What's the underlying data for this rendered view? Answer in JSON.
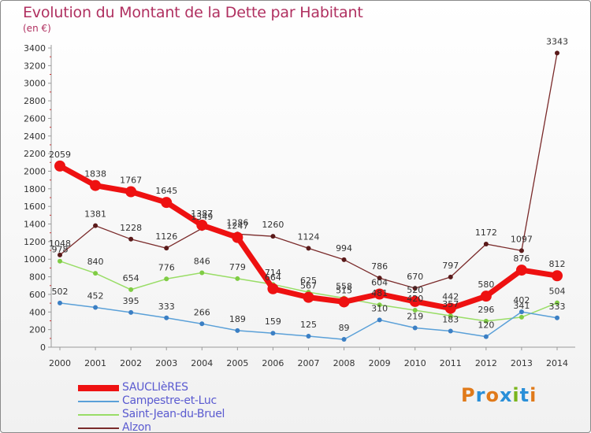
{
  "chart_data": {
    "type": "line",
    "title": "Evolution du Montant de la Dette par Habitant",
    "subtitle": "(en €)",
    "categories": [
      "2000",
      "2001",
      "2002",
      "2003",
      "2004",
      "2005",
      "2006",
      "2007",
      "2008",
      "2009",
      "2010",
      "2011",
      "2012",
      "2013",
      "2014"
    ],
    "ylim": [
      0,
      3400
    ],
    "yticks": [
      0,
      200,
      400,
      600,
      800,
      1000,
      1200,
      1400,
      1600,
      1800,
      2000,
      2200,
      2400,
      2600,
      2800,
      3000,
      3200,
      3400
    ],
    "grid": false,
    "legend_position": "bottom-left",
    "series": [
      {
        "name": "SAUCLIèRES",
        "color": "#ee1111",
        "width": 7,
        "marker": 7,
        "values": [
          2059,
          1838,
          1767,
          1645,
          1387,
          1247,
          664,
          567,
          515,
          604,
          520,
          442,
          580,
          876,
          812
        ],
        "labels": [
          "2059",
          "1838",
          "1767",
          "1645",
          "1387",
          "1247",
          "664",
          "567",
          "515",
          "604",
          "520",
          "442",
          "580",
          "876",
          "812"
        ]
      },
      {
        "name": "Campestre-et-Luc",
        "color": "#5aa0d8",
        "width": 1.5,
        "marker": 3,
        "values": [
          502,
          452,
          395,
          333,
          266,
          189,
          159,
          125,
          89,
          310,
          219,
          183,
          120,
          402,
          333
        ],
        "labels": [
          "502",
          "452",
          "395",
          "333",
          "266",
          "189",
          "159",
          "125",
          "89",
          "310",
          "219",
          "183",
          "120",
          "402",
          "333"
        ]
      },
      {
        "name": "Saint-Jean-du-Bruel",
        "color": "#99dd66",
        "width": 1.5,
        "marker": 3,
        "values": [
          978,
          840,
          654,
          776,
          846,
          779,
          714,
          625,
          558,
          481,
          420,
          357,
          296,
          341,
          504
        ],
        "labels": [
          "978",
          "840",
          "654",
          "776",
          "846",
          "779",
          "714",
          "625",
          "558",
          "481",
          "420",
          "357",
          "296",
          "341",
          "504"
        ]
      },
      {
        "name": "Alzon",
        "color": "#7a2a2a",
        "width": 1.3,
        "marker": 3,
        "values": [
          1048,
          1381,
          1228,
          1126,
          1349,
          1286,
          1260,
          1124,
          994,
          786,
          670,
          797,
          1172,
          1097,
          3343
        ],
        "labels": [
          "1048",
          "1381",
          "1228",
          "1126",
          "1349",
          "1286",
          "1260",
          "1124",
          "994",
          "786",
          "670",
          "797",
          "1172",
          "1097",
          "3343"
        ]
      }
    ]
  },
  "logo": {
    "text": "Proxiti"
  }
}
